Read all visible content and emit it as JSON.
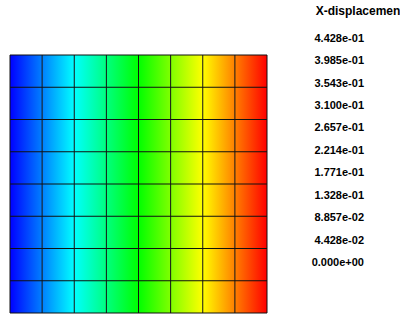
{
  "chart_data": {
    "type": "heatmap",
    "colorbar_label": "X-displacement",
    "x": [
      0,
      1,
      2,
      3,
      4,
      5,
      6,
      7,
      8
    ],
    "y": [
      0,
      1,
      2,
      3,
      4,
      5,
      6,
      7,
      8
    ],
    "values": [
      0,
      0.05535,
      0.1107,
      0.16605,
      0.2214,
      0.27675,
      0.3321,
      0.38745,
      0.4428
    ],
    "xlim": [
      0,
      8
    ],
    "ylim": [
      0,
      8
    ],
    "tick_labels": false,
    "grid": true,
    "colorbar_range": [
      0,
      0.4428
    ],
    "colorbar_ticks": [
      {
        "value": 0.4428,
        "label": "4.428e-01"
      },
      {
        "value": 0.3985,
        "label": "3.985e-01"
      },
      {
        "value": 0.3543,
        "label": "3.543e-01"
      },
      {
        "value": 0.31,
        "label": "3.100e-01"
      },
      {
        "value": 0.2657,
        "label": "2.657e-01"
      },
      {
        "value": 0.2214,
        "label": "2.214e-01"
      },
      {
        "value": 0.1771,
        "label": "1.771e-01"
      },
      {
        "value": 0.1328,
        "label": "1.328e-01"
      },
      {
        "value": 0.08857,
        "label": "8.857e-02"
      },
      {
        "value": 0.04428,
        "label": "4.428e-02"
      },
      {
        "value": 0,
        "label": "0.000e+00"
      }
    ]
  }
}
